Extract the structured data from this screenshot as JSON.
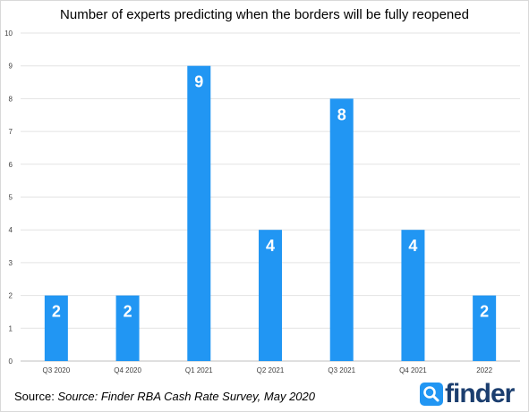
{
  "chart_data": {
    "type": "bar",
    "title": "Number of experts predicting when the borders will be fully reopened",
    "categories": [
      "Q3 2020",
      "Q4 2020",
      "Q1 2021",
      "Q2 2021",
      "Q3 2021",
      "Q4 2021",
      "2022"
    ],
    "values": [
      2,
      2,
      9,
      4,
      8,
      4,
      2
    ],
    "ylim": [
      0,
      10
    ],
    "yticks": [
      0,
      1,
      2,
      3,
      4,
      5,
      6,
      7,
      8,
      9,
      10
    ],
    "xlabel": "",
    "ylabel": "",
    "grid": true,
    "bar_color": "#2196f3",
    "label_color": "#ffffff"
  },
  "footer": {
    "source_prefix": "Source: ",
    "source_text": "Source: Finder RBA Cash Rate Survey, May 2020"
  },
  "logo": {
    "text": "finder",
    "icon": "finder-magnifier-icon",
    "color": "#1b3e6f",
    "accent": "#2196f3"
  }
}
